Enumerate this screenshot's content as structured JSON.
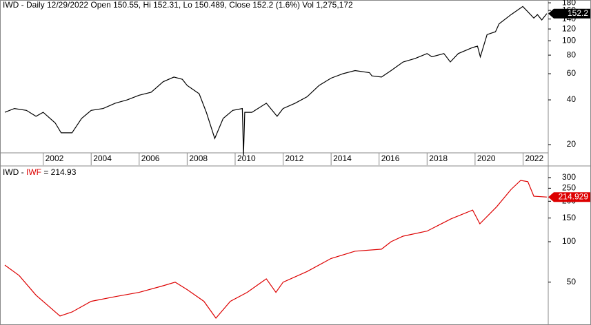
{
  "chart_data": [
    {
      "type": "line",
      "title": "IWD - Daily 12/29/2022 Open 150.55, Hi 152.31, Lo 150.489, Close 152.2 (1.6%) Vol 1,275,172",
      "x": [
        2000.4,
        2000.8,
        2001.3,
        2001.7,
        2002.0,
        2002.5,
        2002.75,
        2003.2,
        2003.6,
        2004.0,
        2004.5,
        2005.0,
        2005.5,
        2006.0,
        2006.5,
        2007.0,
        2007.45,
        2007.8,
        2008.0,
        2008.5,
        2008.8,
        2009.15,
        2009.5,
        2009.9,
        2010.3,
        2010.35,
        2010.4,
        2010.7,
        2011.3,
        2011.75,
        2012.0,
        2012.5,
        2013.0,
        2013.5,
        2014.0,
        2014.5,
        2015.0,
        2015.6,
        2015.7,
        2016.1,
        2016.5,
        2017.0,
        2017.5,
        2018.0,
        2018.2,
        2018.7,
        2018.97,
        2019.3,
        2019.9,
        2020.1,
        2020.22,
        2020.5,
        2020.85,
        2021.0,
        2021.5,
        2021.99,
        2022.45,
        2022.6,
        2022.78,
        2022.99
      ],
      "series": [
        {
          "name": "IWD",
          "color": "#000000",
          "values": [
            33,
            35,
            34,
            31,
            33,
            28,
            24,
            24,
            30,
            34,
            35,
            38,
            40,
            43,
            45,
            53,
            57,
            55,
            50,
            44,
            33,
            22,
            30,
            34,
            35,
            17,
            33,
            33,
            38,
            31,
            35,
            38,
            42,
            50,
            56,
            60,
            63,
            61,
            58,
            57,
            63,
            72,
            76,
            82,
            78,
            82,
            72,
            82,
            90,
            92,
            78,
            110,
            115,
            130,
            150,
            170,
            142,
            150,
            138,
            152.2
          ]
        }
      ],
      "xlim": [
        2000.2,
        2023.05
      ],
      "xticks": [
        2002,
        2004,
        2006,
        2008,
        2010,
        2012,
        2014,
        2016,
        2018,
        2020,
        2022
      ],
      "ylim": [
        17.6,
        188
      ],
      "yticks": [
        20,
        40,
        60,
        80,
        100,
        120,
        140,
        160,
        180
      ],
      "log_scale": true
    },
    {
      "type": "line",
      "title": {
        "base": "IWD",
        "sep": " - ",
        "compare": "IWF",
        "result": " = 214.93"
      },
      "x": [
        2000.4,
        2001.0,
        2001.7,
        2002.7,
        2003.2,
        2004.0,
        2005.0,
        2006.0,
        2007.0,
        2007.5,
        2008.0,
        2008.7,
        2009.2,
        2009.8,
        2010.5,
        2011.3,
        2011.7,
        2012.0,
        2013.0,
        2014.0,
        2015.0,
        2016.1,
        2016.5,
        2017.0,
        2018.0,
        2019.0,
        2019.9,
        2020.2,
        2020.9,
        2021.5,
        2021.9,
        2022.2,
        2022.45,
        2022.99
      ],
      "series": [
        {
          "name": "IWD - IWF",
          "color": "#dd0000",
          "values": [
            67,
            56,
            40,
            28,
            30,
            36,
            39,
            42,
            47,
            50,
            44,
            36,
            27,
            36,
            42,
            53,
            42,
            50,
            60,
            75,
            85,
            88,
            100,
            110,
            120,
            148,
            172,
            136,
            182,
            245,
            286,
            280,
            218,
            214.929
          ]
        }
      ],
      "xlim": [
        2000.2,
        2023.05
      ],
      "ylim": [
        24,
        362
      ],
      "yticks": [
        50,
        100,
        150,
        200,
        250,
        300
      ],
      "log_scale": true
    }
  ]
}
